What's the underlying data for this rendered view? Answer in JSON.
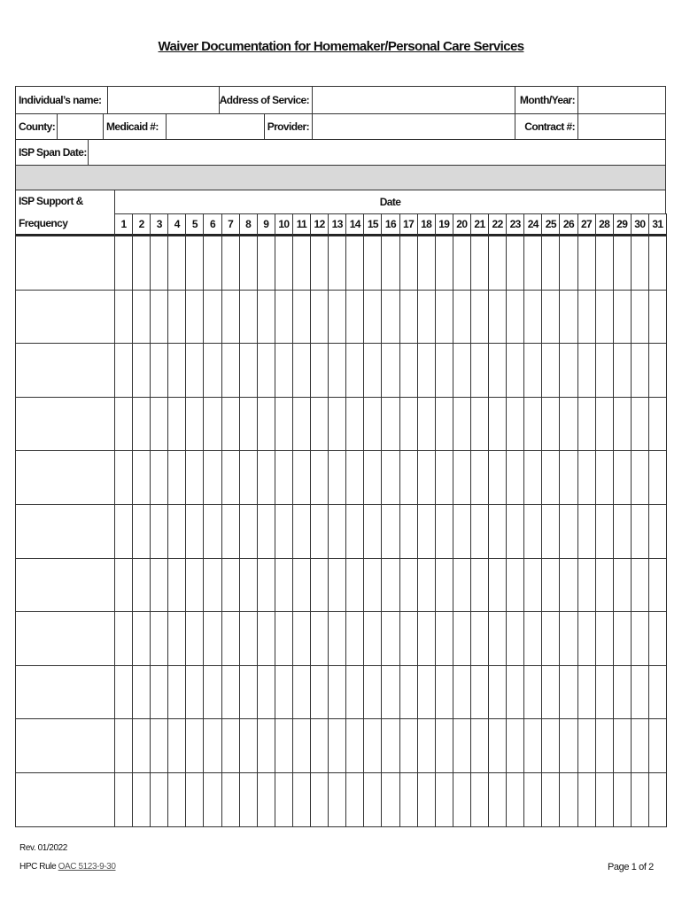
{
  "title": "Waiver Documentation for Homemaker/Personal Care Services",
  "fields": {
    "individual_name_label": "Individual’s name:",
    "address_label": "Address of Service:",
    "month_year_label": "Month/Year:",
    "county_label": "County:",
    "medicaid_label": "Medicaid #:",
    "provider_label": "Provider:",
    "contract_label": "Contract #:",
    "isp_span_label": "ISP Span Date:"
  },
  "grid": {
    "support_label_1": "ISP Support &",
    "support_label_2": "Frequency",
    "date_label": "Date",
    "days": [
      "1",
      "2",
      "3",
      "4",
      "5",
      "6",
      "7",
      "8",
      "9",
      "10",
      "11",
      "12",
      "13",
      "14",
      "15",
      "16",
      "17",
      "18",
      "19",
      "20",
      "21",
      "22",
      "23",
      "24",
      "25",
      "26",
      "27",
      "28",
      "29",
      "30",
      "31"
    ],
    "row_count": 11
  },
  "footer": {
    "rev": "Rev. 01/2022",
    "rule_prefix": "HPC Rule ",
    "rule_link": "OAC 5123-9-30",
    "page": "Page 1 of 2"
  }
}
